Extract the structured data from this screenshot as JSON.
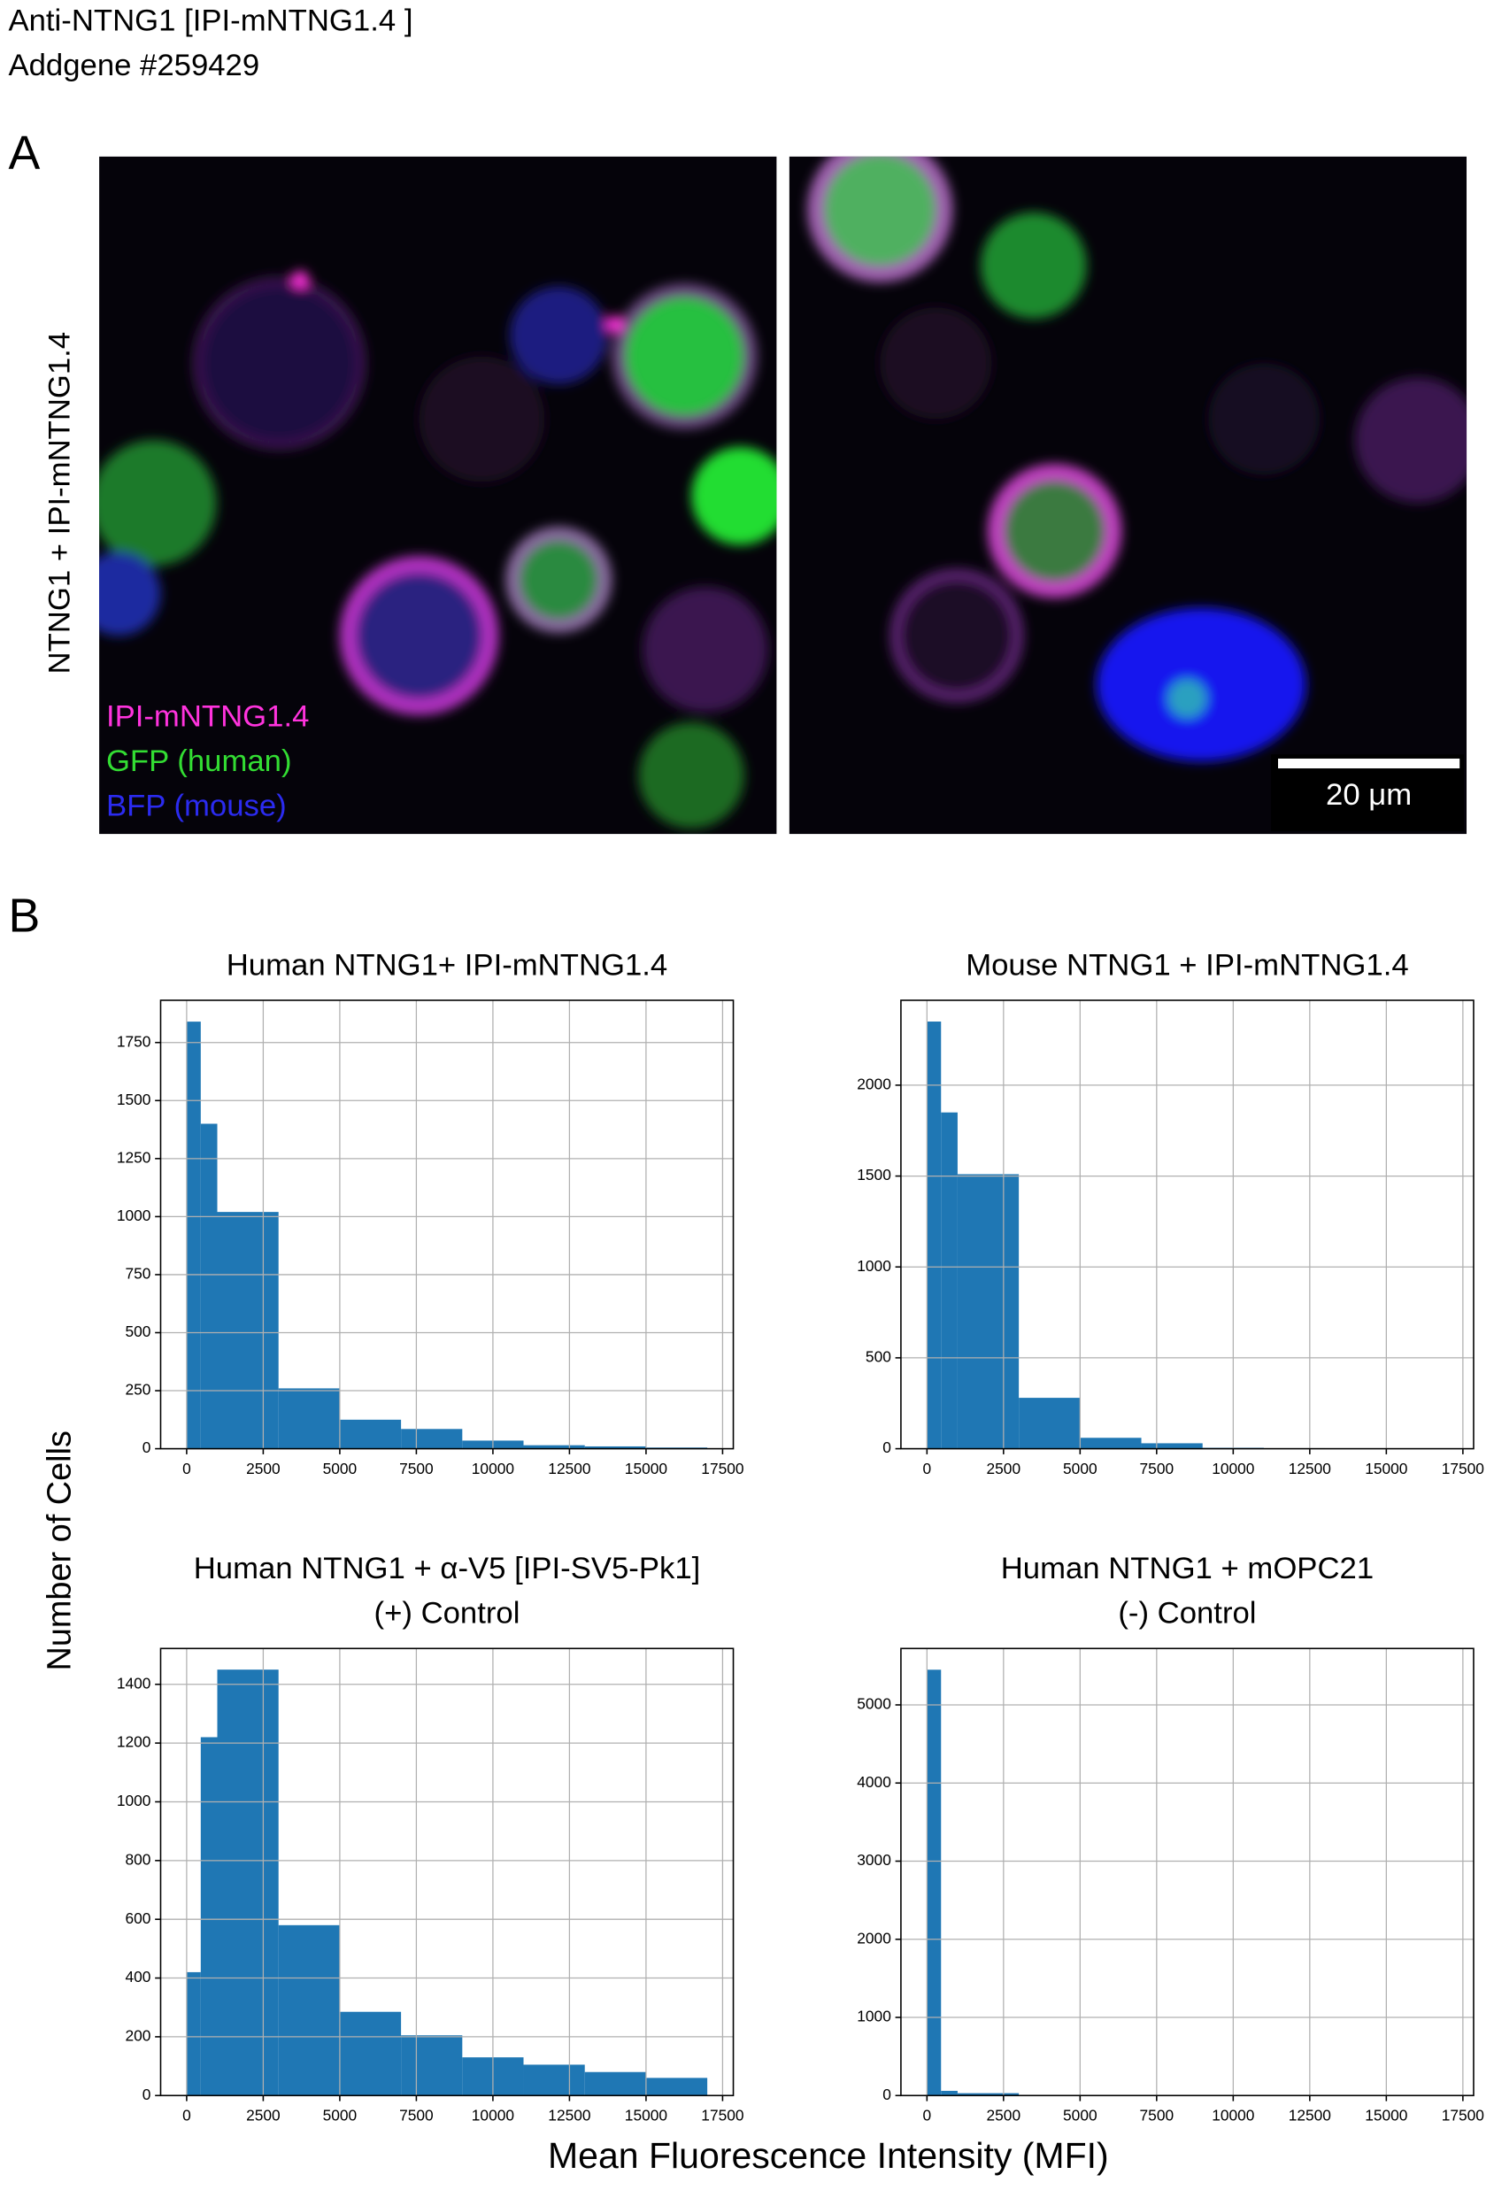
{
  "header": {
    "title": "Anti-NTNG1 [IPI-mNTNG1.4 ]",
    "subtitle": "Addgene #259429"
  },
  "panel_a": {
    "label": "A",
    "side_label": "NTNG1 + IPI-mNTNG1.4",
    "legend": [
      {
        "text": "IPI-mNTNG1.4",
        "color": "#ff33dd"
      },
      {
        "text": "GFP (human)",
        "color": "#33dd33"
      },
      {
        "text": "BFP (mouse)",
        "color": "#2b2bf0"
      }
    ],
    "scale_bar": "20 μm"
  },
  "panel_b": {
    "label": "B",
    "y_label": "Number of Cells",
    "x_label": "Mean Fluorescence Intensity (MFI)"
  },
  "chart_data": [
    {
      "type": "histogram",
      "title": "Human NTNG1+ IPI-mNTNG1.4",
      "color": "#1f77b4",
      "grid": true,
      "bins": [
        0,
        460,
        1000,
        3000,
        5000,
        7000,
        9000,
        11000,
        13000,
        15000,
        17000
      ],
      "values": [
        1840,
        1400,
        1020,
        260,
        125,
        85,
        35,
        15,
        10,
        5
      ],
      "xlim": [
        -850,
        17850
      ],
      "xticks": [
        0,
        2500,
        5000,
        7500,
        10000,
        12500,
        15000,
        17500
      ],
      "ylim": [
        0,
        1932
      ],
      "yticks": [
        0,
        250,
        500,
        750,
        1000,
        1250,
        1500,
        1750
      ]
    },
    {
      "type": "histogram",
      "title": "Mouse NTNG1 + IPI-mNTNG1.4",
      "color": "#1f77b4",
      "grid": true,
      "bins": [
        0,
        460,
        1000,
        3000,
        5000,
        7000,
        9000,
        11000,
        13000,
        15000,
        17000
      ],
      "values": [
        2350,
        1850,
        1510,
        280,
        60,
        30,
        5,
        3,
        2,
        1
      ],
      "xlim": [
        -850,
        17850
      ],
      "xticks": [
        0,
        2500,
        5000,
        7500,
        10000,
        12500,
        15000,
        17500
      ],
      "ylim": [
        0,
        2467
      ],
      "yticks": [
        0,
        500,
        1000,
        1500,
        2000
      ]
    },
    {
      "type": "histogram",
      "title": "Human NTNG1 + α-V5 [IPI-SV5-Pk1]",
      "subtitle": "(+) Control",
      "color": "#1f77b4",
      "grid": true,
      "bins": [
        0,
        460,
        1000,
        3000,
        5000,
        7000,
        9000,
        11000,
        13000,
        15000,
        17000
      ],
      "values": [
        420,
        1220,
        1450,
        580,
        285,
        205,
        130,
        105,
        80,
        60
      ],
      "xlim": [
        -850,
        17850
      ],
      "xticks": [
        0,
        2500,
        5000,
        7500,
        10000,
        12500,
        15000,
        17500
      ],
      "ylim": [
        0,
        1522
      ],
      "yticks": [
        0,
        200,
        400,
        600,
        800,
        1000,
        1200,
        1400
      ]
    },
    {
      "type": "histogram",
      "title": "Human NTNG1 + mOPC21",
      "subtitle": "(-) Control",
      "color": "#1f77b4",
      "grid": true,
      "bins": [
        0,
        460,
        1000,
        3000,
        5000,
        7000,
        9000,
        11000,
        13000,
        15000,
        17000
      ],
      "values": [
        5450,
        60,
        30,
        5,
        2,
        1,
        1,
        0,
        0,
        0
      ],
      "xlim": [
        -850,
        17850
      ],
      "xticks": [
        0,
        2500,
        5000,
        7500,
        10000,
        12500,
        15000,
        17500
      ],
      "ylim": [
        0,
        5722
      ],
      "yticks": [
        0,
        1000,
        2000,
        3000,
        4000,
        5000
      ]
    }
  ]
}
